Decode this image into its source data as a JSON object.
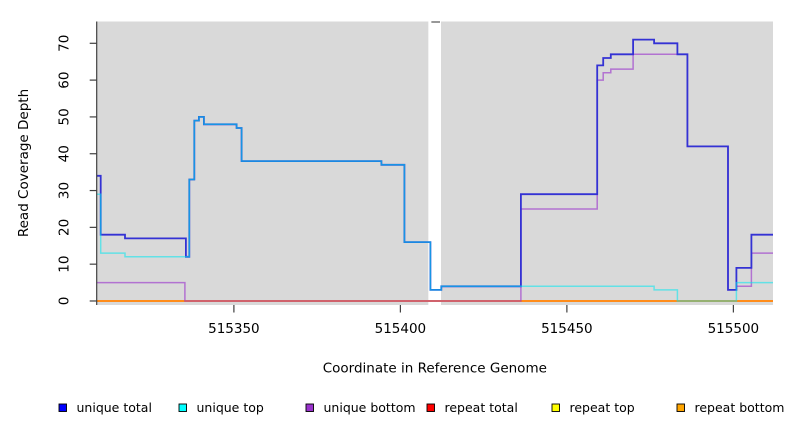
{
  "chart_data": {
    "type": "line",
    "subtype": "step",
    "title": "",
    "xlabel": "Coordinate in Reference Genome",
    "ylabel": "Read Coverage Depth",
    "x_ticks": [
      515350,
      515400,
      515450,
      515500
    ],
    "y_ticks": [
      0,
      10,
      20,
      30,
      40,
      50,
      60,
      70
    ],
    "x_range": [
      515308.8,
      515511.9
    ],
    "y_range": [
      -1.09,
      75.92
    ],
    "grid": false,
    "panel_bg": "#d9d9d9",
    "gap_region": {
      "x0": 515408.4,
      "x1": 515412.2,
      "cap_color": "#7f7f7f"
    },
    "legend_position": "bottom",
    "legend": [
      {
        "label": "unique total",
        "color": "#0000FF"
      },
      {
        "label": "unique top",
        "color": "#00FFFF"
      },
      {
        "label": "unique bottom",
        "color": "#9932CC"
      },
      {
        "label": "repeat total",
        "color": "#FF0000"
      },
      {
        "label": "repeat top",
        "color": "#FFFF00"
      },
      {
        "label": "repeat bottom",
        "color": "#FFA500"
      }
    ],
    "series": [
      {
        "name": "repeat top",
        "color": "#FFFF00",
        "opacity": 1,
        "width": 1.2,
        "steps": [
          [
            515308.8,
            0
          ],
          [
            515511.9,
            0
          ]
        ]
      },
      {
        "name": "repeat total",
        "color": "#FF3030",
        "opacity": 1,
        "width": 1.2,
        "steps": [
          [
            515308.8,
            0
          ],
          [
            515511.9,
            0
          ]
        ]
      },
      {
        "name": "repeat bottom",
        "color": "#FF8C1A",
        "opacity": 1,
        "width": 2,
        "steps": [
          [
            515308.8,
            0
          ],
          [
            515511.9,
            0
          ]
        ]
      },
      {
        "name": "unique bottom",
        "color": "#9932CC",
        "opacity": 0.62,
        "width": 1.5,
        "steps": [
          [
            515308.8,
            5
          ],
          [
            515335.3,
            0
          ],
          [
            515436.2,
            25
          ],
          [
            515459.1,
            60
          ],
          [
            515460.9,
            62
          ],
          [
            515463.2,
            63
          ],
          [
            515469.9,
            67
          ],
          [
            515486.2,
            42
          ],
          [
            515498.4,
            3
          ],
          [
            515500.9,
            4
          ],
          [
            515505.4,
            13
          ],
          [
            515511.9,
            13
          ]
        ]
      },
      {
        "name": "unique total",
        "color": "#3432D4",
        "opacity": 1,
        "width": 1.8,
        "steps": [
          [
            515308.8,
            34
          ],
          [
            515310.0,
            18
          ],
          [
            515317.3,
            17
          ],
          [
            515335.6,
            12
          ],
          [
            515336.6,
            33
          ],
          [
            515338.1,
            49
          ],
          [
            515339.5,
            50
          ],
          [
            515341.0,
            48
          ],
          [
            515350.8,
            47
          ],
          [
            515352.3,
            38
          ],
          [
            515394.3,
            37
          ],
          [
            515401.2,
            16
          ],
          [
            515409.0,
            3
          ],
          [
            515412.3,
            4
          ],
          [
            515436.2,
            29
          ],
          [
            515459.1,
            64
          ],
          [
            515460.9,
            66
          ],
          [
            515463.2,
            67
          ],
          [
            515469.9,
            71
          ],
          [
            515476.2,
            70
          ],
          [
            515483.2,
            67
          ],
          [
            515486.2,
            42
          ],
          [
            515498.4,
            3
          ],
          [
            515500.9,
            9
          ],
          [
            515505.4,
            18
          ],
          [
            515511.9,
            18
          ]
        ]
      },
      {
        "name": "unique top",
        "color": "#00E8F0",
        "opacity": 0.55,
        "width": 1.5,
        "steps": [
          [
            515308.8,
            29
          ],
          [
            515310.0,
            13
          ],
          [
            515317.3,
            12
          ],
          [
            515336.6,
            33
          ],
          [
            515338.1,
            49
          ],
          [
            515339.5,
            50
          ],
          [
            515341.0,
            48
          ],
          [
            515350.8,
            47
          ],
          [
            515352.3,
            38
          ],
          [
            515394.3,
            37
          ],
          [
            515401.2,
            16
          ],
          [
            515409.0,
            3
          ],
          [
            515412.3,
            4
          ],
          [
            515476.2,
            3
          ],
          [
            515483.2,
            0
          ],
          [
            515500.9,
            5
          ],
          [
            515511.9,
            5
          ]
        ]
      }
    ]
  }
}
